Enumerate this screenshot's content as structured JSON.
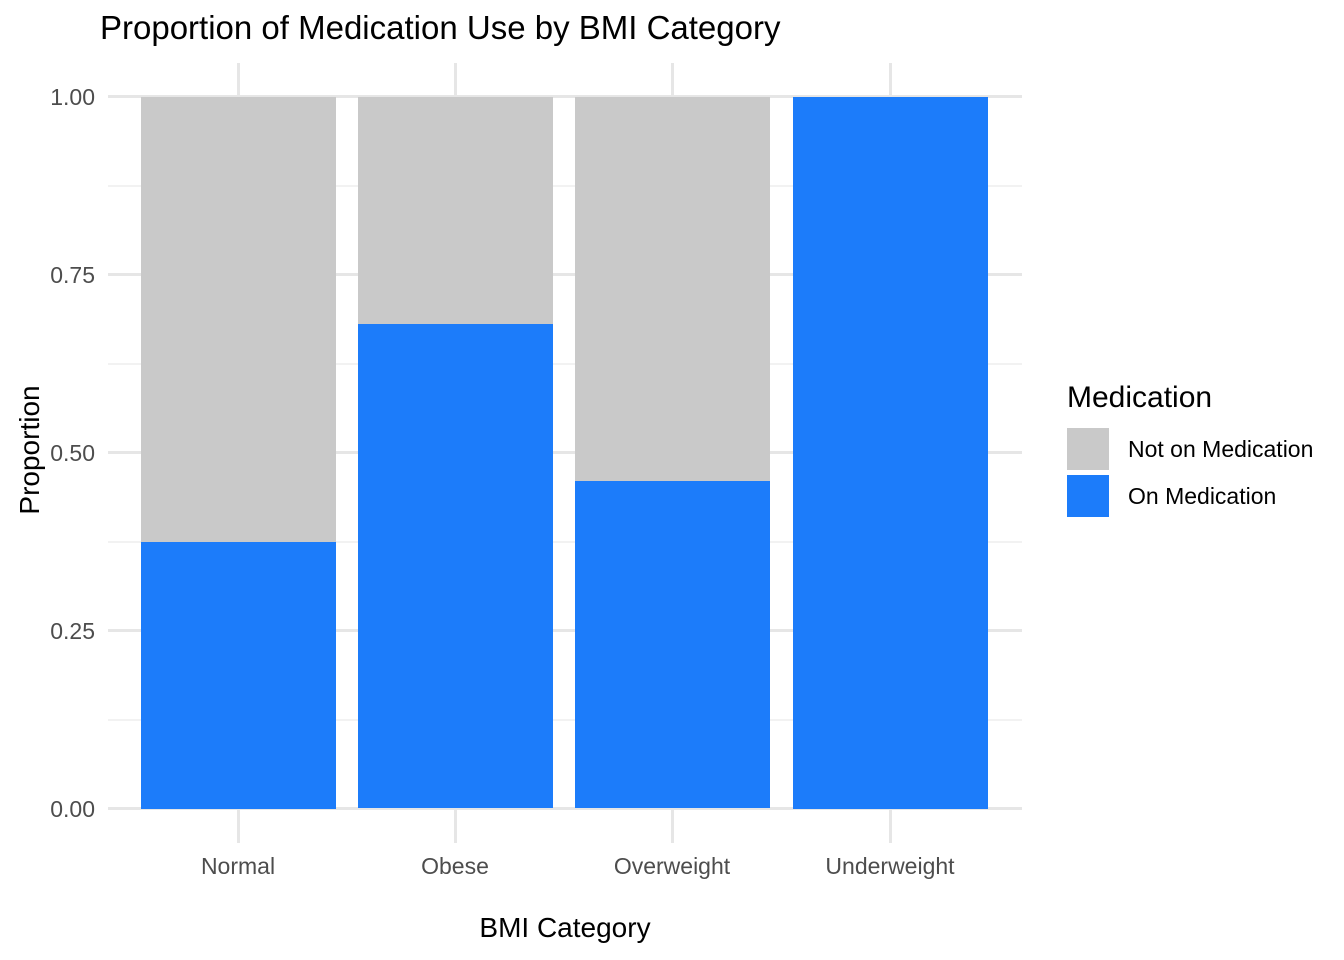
{
  "title": "Proportion of Medication Use by BMI Category",
  "axes": {
    "x": {
      "title": "BMI Category",
      "tick_labels": [
        "Normal",
        "Obese",
        "Overweight",
        "Underweight"
      ]
    },
    "y": {
      "title": "Proportion",
      "tick_labels": [
        "0.00",
        "0.25",
        "0.50",
        "0.75",
        "1.00"
      ],
      "tick_values": [
        0,
        0.25,
        0.5,
        0.75,
        1
      ]
    }
  },
  "legend": {
    "title": "Medication",
    "items": [
      {
        "label": "Not on Medication",
        "color": "#c9c9c9"
      },
      {
        "label": "On Medication",
        "color": "#1c7cfa"
      }
    ]
  },
  "colors": {
    "background": "#ffffff",
    "on_medication": "#1c7cfa",
    "not_on_medication": "#c9c9c9",
    "grid_major": "#e6e6e6",
    "grid_minor": "#f2f2f2",
    "tick_text": "#4d4d4d",
    "title_text": "#000000"
  },
  "chart_data": {
    "type": "bar",
    "stacking": "proportion",
    "title": "Proportion of Medication Use by BMI Category",
    "xlabel": "BMI Category",
    "ylabel": "Proportion",
    "ylim": [
      0,
      1
    ],
    "yticks": [
      0,
      0.25,
      0.5,
      0.75,
      1
    ],
    "yticks_minor": [
      0.125,
      0.375,
      0.625,
      0.875
    ],
    "grid": true,
    "legend_position": "right",
    "categories": [
      "Normal",
      "Obese",
      "Overweight",
      "Underweight"
    ],
    "series": [
      {
        "name": "On Medication",
        "color": "#1c7cfa",
        "values": [
          0.375,
          0.68,
          0.46,
          1.0
        ]
      },
      {
        "name": "Not on Medication",
        "color": "#c9c9c9",
        "values": [
          0.625,
          0.32,
          0.54,
          0.0
        ]
      }
    ]
  }
}
